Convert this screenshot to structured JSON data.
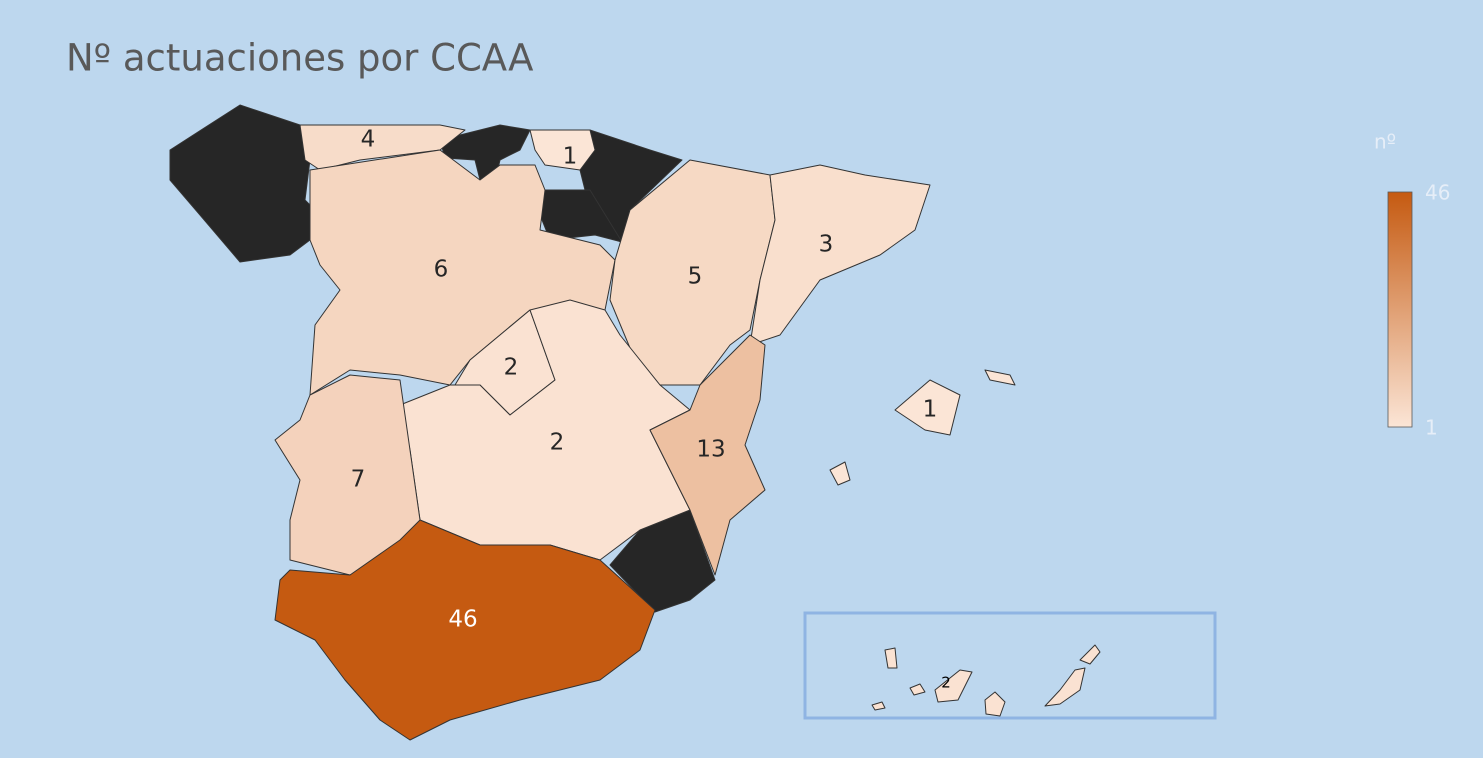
{
  "title": "Nº actuaciones por CCAA",
  "legend": {
    "label": "nº",
    "range": [
      1,
      46
    ],
    "ticks": [
      46,
      1
    ],
    "colors": [
      "#fbe5d6",
      "#c55a11"
    ]
  },
  "regions": [
    {
      "value": 4
    },
    {
      "value": 1
    },
    {
      "value": 6
    },
    {
      "value": 5
    },
    {
      "value": 3
    },
    {
      "value": 2
    },
    {
      "value": 2
    },
    {
      "value": 13
    },
    {
      "value": 7
    },
    {
      "value": 46
    },
    {
      "value": 1
    },
    {
      "value": 2
    }
  ]
}
